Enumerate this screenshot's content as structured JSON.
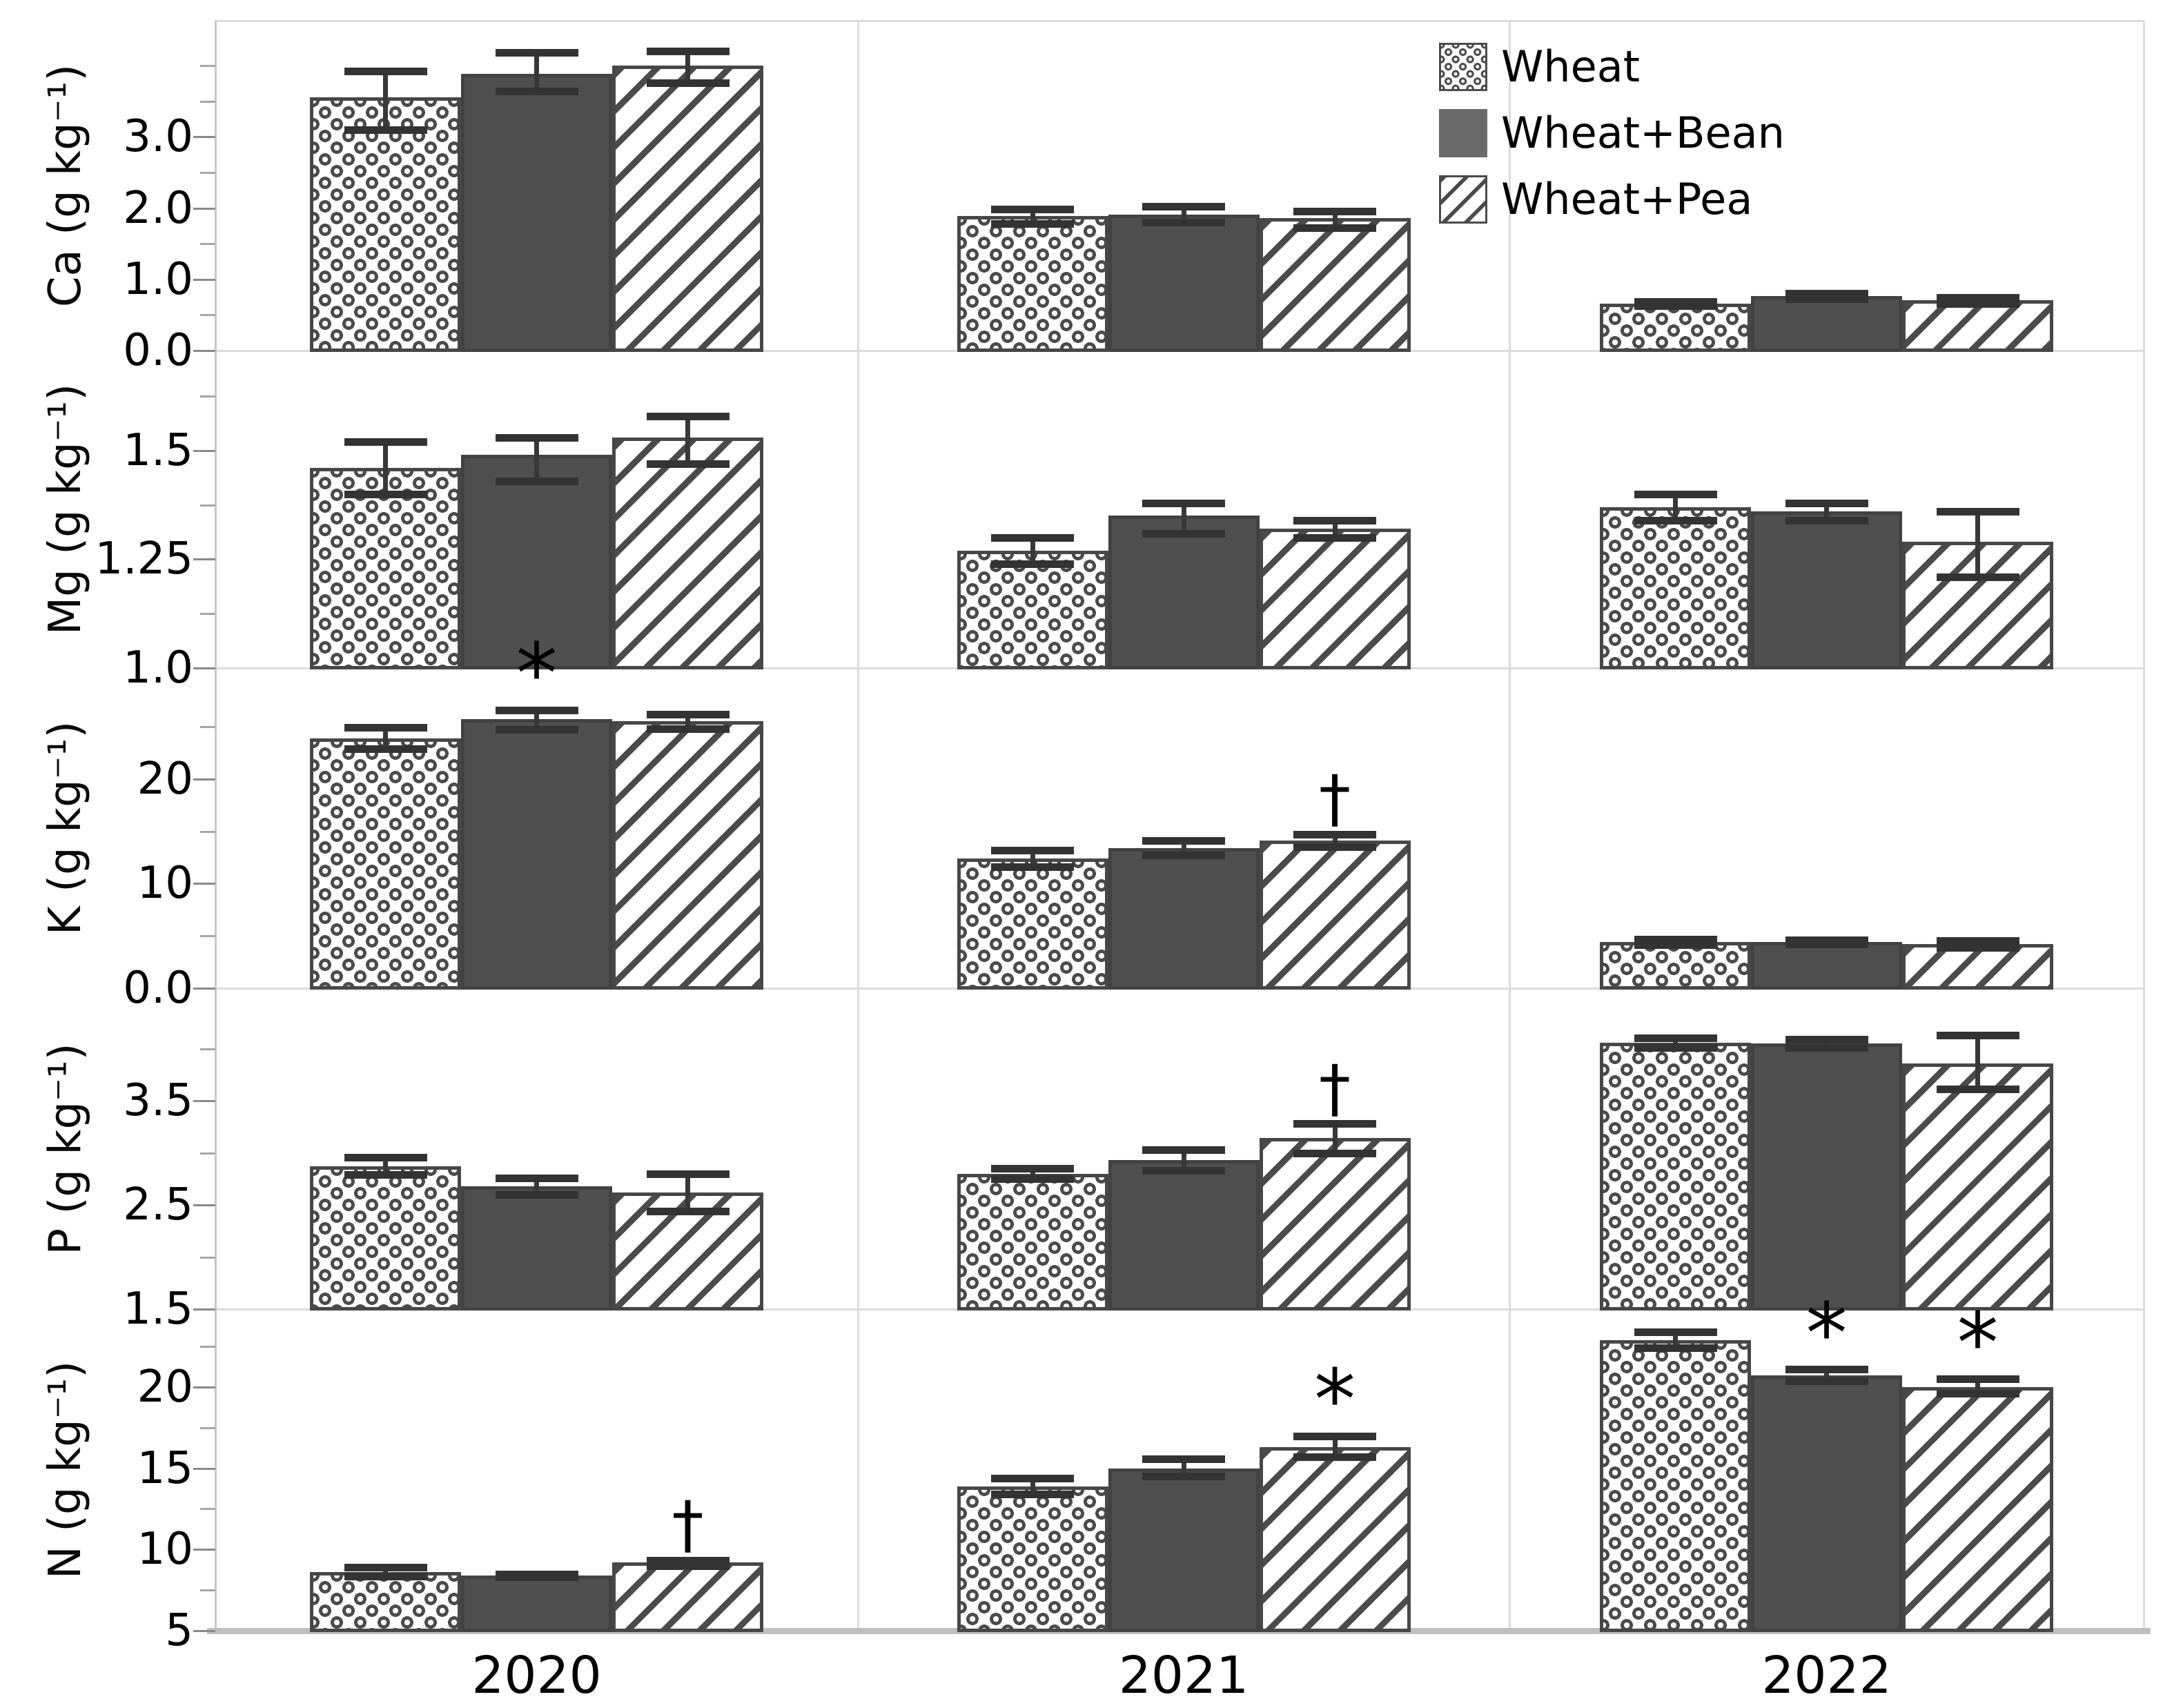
{
  "figure": {
    "kind": "multi-panel grouped bar chart",
    "x_category_labels": [
      "2020",
      "2021",
      "2022"
    ]
  },
  "legend": {
    "items": [
      {
        "label": "Wheat",
        "pattern": "dots"
      },
      {
        "label": "Wheat+Bean",
        "pattern": "solid"
      },
      {
        "label": "Wheat+Pea",
        "pattern": "hatch"
      }
    ]
  },
  "colors": {
    "background": "#ffffff",
    "bar_solid_fill": "#4f4f4f",
    "bar_border": "#474747",
    "pattern_ink": "#4b4b4b",
    "grid_line": "#dcdcdc",
    "axis_line": "#c7c7c7",
    "baseline": "#c0c0c0",
    "tick_major": "#8a8a8a",
    "tick_minor": "#a6a6a6",
    "error_bar": "#383838",
    "text": "#000000"
  },
  "chart_data": {
    "type": "bar",
    "categories": [
      "2020",
      "2021",
      "2022"
    ],
    "series_names": [
      "Wheat",
      "Wheat+Bean",
      "Wheat+Pea"
    ],
    "legend_position": "top-right",
    "grid": "panel borders only",
    "significance_symbols": {
      "asterisk": "*",
      "dagger": "†"
    },
    "panels": [
      {
        "nutrient": "Ca",
        "axis_label": "Ca (g kg⁻¹)",
        "ylim": [
          0,
          4.63
        ],
        "labeled_ticks": [
          {
            "v": 0,
            "t": "0.0"
          },
          {
            "v": 1,
            "t": "1.0"
          },
          {
            "v": 2,
            "t": "2.0"
          },
          {
            "v": 3,
            "t": "3.0"
          }
        ],
        "minor_ticks": [
          0.5,
          1.5,
          2.5,
          3.5,
          4.0
        ],
        "groups": [
          {
            "year": "2020",
            "bars": [
              {
                "series": "Wheat",
                "value": 3.55,
                "err_lo": 3.1,
                "err_hi": 3.92,
                "mark": ""
              },
              {
                "series": "Wheat+Bean",
                "value": 3.88,
                "err_lo": 3.64,
                "err_hi": 4.18,
                "mark": ""
              },
              {
                "series": "Wheat+Pea",
                "value": 4.0,
                "err_lo": 3.76,
                "err_hi": 4.2,
                "mark": ""
              }
            ]
          },
          {
            "year": "2021",
            "bars": [
              {
                "series": "Wheat",
                "value": 1.89,
                "err_lo": 1.78,
                "err_hi": 1.99,
                "mark": ""
              },
              {
                "series": "Wheat+Bean",
                "value": 1.91,
                "err_lo": 1.8,
                "err_hi": 2.02,
                "mark": ""
              },
              {
                "series": "Wheat+Pea",
                "value": 1.86,
                "err_lo": 1.72,
                "err_hi": 1.96,
                "mark": ""
              }
            ]
          },
          {
            "year": "2022",
            "bars": [
              {
                "series": "Wheat",
                "value": 0.66,
                "err_lo": 0.63,
                "err_hi": 0.69,
                "mark": ""
              },
              {
                "series": "Wheat+Bean",
                "value": 0.77,
                "err_lo": 0.73,
                "err_hi": 0.8,
                "mark": ""
              },
              {
                "series": "Wheat+Pea",
                "value": 0.71,
                "err_lo": 0.66,
                "err_hi": 0.75,
                "mark": ""
              }
            ]
          }
        ]
      },
      {
        "nutrient": "Mg",
        "axis_label": "Mg (g kg⁻¹)",
        "ylim": [
          1.0,
          1.73
        ],
        "labeled_ticks": [
          {
            "v": 1.0,
            "t": "1.0"
          },
          {
            "v": 1.25,
            "t": "1.25"
          },
          {
            "v": 1.5,
            "t": "1.5"
          }
        ],
        "minor_ticks": [
          1.125,
          1.375,
          1.625
        ],
        "groups": [
          {
            "year": "2020",
            "bars": [
              {
                "series": "Wheat",
                "value": 1.46,
                "err_lo": 1.4,
                "err_hi": 1.52,
                "mark": ""
              },
              {
                "series": "Wheat+Bean",
                "value": 1.49,
                "err_lo": 1.43,
                "err_hi": 1.53,
                "mark": ""
              },
              {
                "series": "Wheat+Pea",
                "value": 1.53,
                "err_lo": 1.47,
                "err_hi": 1.58,
                "mark": ""
              }
            ]
          },
          {
            "year": "2021",
            "bars": [
              {
                "series": "Wheat",
                "value": 1.27,
                "err_lo": 1.24,
                "err_hi": 1.3,
                "mark": ""
              },
              {
                "series": "Wheat+Bean",
                "value": 1.35,
                "err_lo": 1.31,
                "err_hi": 1.38,
                "mark": ""
              },
              {
                "series": "Wheat+Pea",
                "value": 1.32,
                "err_lo": 1.3,
                "err_hi": 1.34,
                "mark": ""
              }
            ]
          },
          {
            "year": "2022",
            "bars": [
              {
                "series": "Wheat",
                "value": 1.37,
                "err_lo": 1.34,
                "err_hi": 1.4,
                "mark": ""
              },
              {
                "series": "Wheat+Bean",
                "value": 1.36,
                "err_lo": 1.34,
                "err_hi": 1.38,
                "mark": ""
              },
              {
                "series": "Wheat+Pea",
                "value": 1.29,
                "err_lo": 1.21,
                "err_hi": 1.36,
                "mark": ""
              }
            ]
          }
        ]
      },
      {
        "nutrient": "K",
        "axis_label": "K (g kg⁻¹)",
        "ylim": [
          0,
          30.6
        ],
        "labeled_ticks": [
          {
            "v": 0,
            "t": "0.0"
          },
          {
            "v": 10,
            "t": "10"
          },
          {
            "v": 20,
            "t": "20"
          }
        ],
        "minor_ticks": [
          5,
          15,
          25
        ],
        "groups": [
          {
            "year": "2020",
            "bars": [
              {
                "series": "Wheat",
                "value": 23.9,
                "err_lo": 22.9,
                "err_hi": 24.9,
                "mark": ""
              },
              {
                "series": "Wheat+Bean",
                "value": 25.7,
                "err_lo": 24.7,
                "err_hi": 26.6,
                "mark": "*"
              },
              {
                "series": "Wheat+Pea",
                "value": 25.5,
                "err_lo": 24.8,
                "err_hi": 26.2,
                "mark": ""
              }
            ]
          },
          {
            "year": "2021",
            "bars": [
              {
                "series": "Wheat",
                "value": 12.4,
                "err_lo": 11.6,
                "err_hi": 13.2,
                "mark": ""
              },
              {
                "series": "Wheat+Bean",
                "value": 13.4,
                "err_lo": 12.7,
                "err_hi": 14.1,
                "mark": ""
              },
              {
                "series": "Wheat+Pea",
                "value": 14.1,
                "err_lo": 13.5,
                "err_hi": 14.7,
                "mark": "†"
              }
            ]
          },
          {
            "year": "2022",
            "bars": [
              {
                "series": "Wheat",
                "value": 4.4,
                "err_lo": 4.15,
                "err_hi": 4.65,
                "mark": ""
              },
              {
                "series": "Wheat+Bean",
                "value": 4.4,
                "err_lo": 4.2,
                "err_hi": 4.6,
                "mark": ""
              },
              {
                "series": "Wheat+Pea",
                "value": 4.2,
                "err_lo": 3.9,
                "err_hi": 4.55,
                "mark": ""
              }
            ]
          }
        ]
      },
      {
        "nutrient": "P",
        "axis_label": "P (g kg⁻¹)",
        "ylim": [
          1.5,
          4.58
        ],
        "labeled_ticks": [
          {
            "v": 1.5,
            "t": "1.5"
          },
          {
            "v": 2.5,
            "t": "2.5"
          },
          {
            "v": 3.5,
            "t": "3.5"
          }
        ],
        "minor_ticks": [
          2.0,
          3.0,
          4.0
        ],
        "groups": [
          {
            "year": "2020",
            "bars": [
              {
                "series": "Wheat",
                "value": 2.87,
                "err_lo": 2.79,
                "err_hi": 2.96,
                "mark": ""
              },
              {
                "series": "Wheat+Bean",
                "value": 2.68,
                "err_lo": 2.6,
                "err_hi": 2.76,
                "mark": ""
              },
              {
                "series": "Wheat+Pea",
                "value": 2.62,
                "err_lo": 2.44,
                "err_hi": 2.8,
                "mark": ""
              }
            ]
          },
          {
            "year": "2021",
            "bars": [
              {
                "series": "Wheat",
                "value": 2.8,
                "err_lo": 2.75,
                "err_hi": 2.85,
                "mark": ""
              },
              {
                "series": "Wheat+Bean",
                "value": 2.93,
                "err_lo": 2.83,
                "err_hi": 3.03,
                "mark": ""
              },
              {
                "series": "Wheat+Pea",
                "value": 3.14,
                "err_lo": 3.0,
                "err_hi": 3.28,
                "mark": "†"
              }
            ]
          },
          {
            "year": "2022",
            "bars": [
              {
                "series": "Wheat",
                "value": 4.06,
                "err_lo": 4.01,
                "err_hi": 4.1,
                "mark": ""
              },
              {
                "series": "Wheat+Bean",
                "value": 4.05,
                "err_lo": 4.01,
                "err_hi": 4.09,
                "mark": ""
              },
              {
                "series": "Wheat+Pea",
                "value": 3.86,
                "err_lo": 3.61,
                "err_hi": 4.13,
                "mark": ""
              }
            ]
          }
        ]
      },
      {
        "nutrient": "N",
        "axis_label": "N (g kg⁻¹)",
        "ylim": [
          5,
          24.8
        ],
        "labeled_ticks": [
          {
            "v": 5,
            "t": "5"
          },
          {
            "v": 10,
            "t": "10"
          },
          {
            "v": 15,
            "t": "15"
          },
          {
            "v": 20,
            "t": "20"
          }
        ],
        "minor_ticks": [
          7.5,
          12.5,
          17.5,
          22.5
        ],
        "groups": [
          {
            "year": "2020",
            "bars": [
              {
                "series": "Wheat",
                "value": 8.6,
                "err_lo": 8.35,
                "err_hi": 8.9,
                "mark": ""
              },
              {
                "series": "Wheat+Bean",
                "value": 8.4,
                "err_lo": 8.3,
                "err_hi": 8.5,
                "mark": ""
              },
              {
                "series": "Wheat+Pea",
                "value": 9.2,
                "err_lo": 9.0,
                "err_hi": 9.35,
                "mark": "†"
              }
            ]
          },
          {
            "year": "2021",
            "bars": [
              {
                "series": "Wheat",
                "value": 13.9,
                "err_lo": 13.4,
                "err_hi": 14.4,
                "mark": ""
              },
              {
                "series": "Wheat+Bean",
                "value": 15.0,
                "err_lo": 14.5,
                "err_hi": 15.6,
                "mark": ""
              },
              {
                "series": "Wheat+Pea",
                "value": 16.3,
                "err_lo": 15.7,
                "err_hi": 17.0,
                "mark": "*"
              }
            ]
          },
          {
            "year": "2022",
            "bars": [
              {
                "series": "Wheat",
                "value": 22.9,
                "err_lo": 22.4,
                "err_hi": 23.4,
                "mark": ""
              },
              {
                "series": "Wheat+Bean",
                "value": 20.7,
                "err_lo": 20.4,
                "err_hi": 21.1,
                "mark": "*"
              },
              {
                "series": "Wheat+Pea",
                "value": 20.0,
                "err_lo": 19.6,
                "err_hi": 20.5,
                "mark": "*"
              }
            ]
          }
        ]
      }
    ]
  }
}
